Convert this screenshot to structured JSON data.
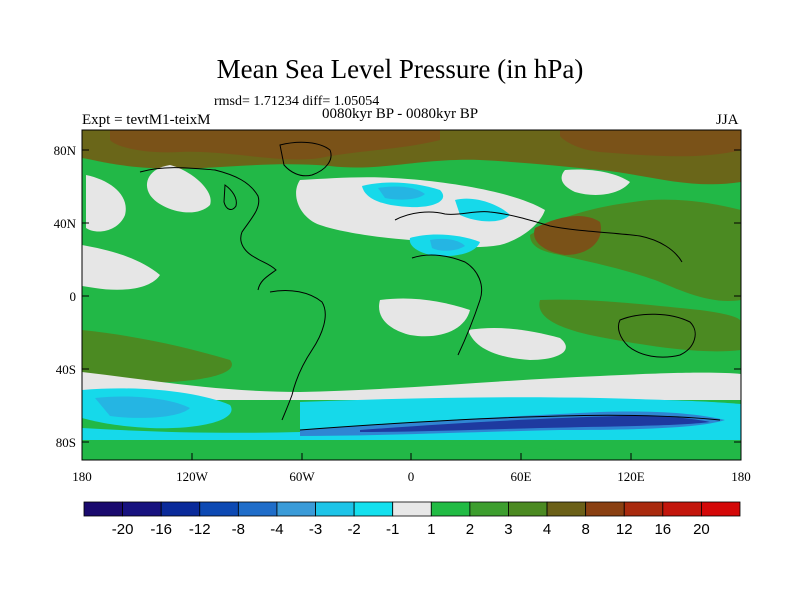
{
  "title": "Mean Sea Level Pressure (in hPa)",
  "stats": "rmsd= 1.71234 diff= 1.05054",
  "subtitle": "0080kyr BP - 0080kyr BP",
  "experiment": "Expt = tevtM1-teixM",
  "season": "JJA",
  "axes": {
    "lat_labels": [
      "80N",
      "40N",
      "0",
      "40S",
      "80S"
    ],
    "lon_labels": [
      "180",
      "120W",
      "60W",
      "0",
      "60E",
      "120E",
      "180"
    ]
  },
  "colorbar": {
    "labels": [
      "-20",
      "-16",
      "-12",
      "-8",
      "-4",
      "-3",
      "-2",
      "-1",
      "1",
      "2",
      "3",
      "4",
      "8",
      "12",
      "16",
      "20"
    ],
    "colors": [
      "#1a0a6e",
      "#17127f",
      "#0a2a9a",
      "#0d49b3",
      "#1f6dc9",
      "#3a9bd8",
      "#1dc4e8",
      "#14e0ee",
      "#e8e8e8",
      "#21bb44",
      "#3d9e2e",
      "#4b8a22",
      "#6b6018",
      "#8a4012",
      "#a92a0e",
      "#c3160c",
      "#d40808"
    ]
  },
  "palette": {
    "land_outline": "#000000",
    "neutral": "#e6e6e6",
    "green_light": "#22b847",
    "green_dark": "#3f8a27",
    "olive": "#6a6619",
    "brown": "#7a5218",
    "cyan": "#16d9ea",
    "blue_light": "#25b5e3",
    "blue": "#2f86d3",
    "navy": "#1e3aa0"
  }
}
